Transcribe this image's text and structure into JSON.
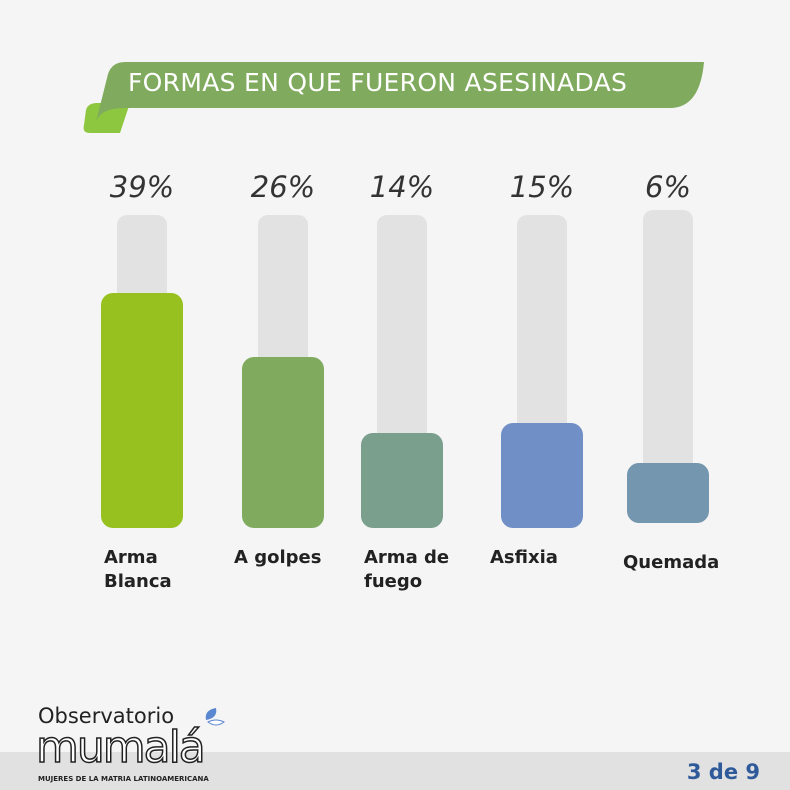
{
  "header": {
    "title": "FORMAS EN QUE FUERON ASESINADAS"
  },
  "chart_data": {
    "type": "bar",
    "title": "FORMAS EN QUE FUERON ASESINADAS",
    "categories": [
      "Arma\nBlanca",
      "A golpes",
      "Arma de\nfuego",
      "Asfixia",
      "Quemada"
    ],
    "values": [
      39,
      26,
      14,
      15,
      6
    ],
    "value_labels": [
      "39%",
      "26%",
      "14%",
      "15%",
      "6%"
    ],
    "colors": [
      "#97c11f",
      "#80ab5f",
      "#7a9f8c",
      "#6f8fc6",
      "#7496ae"
    ],
    "track_color": "#e2e2e2",
    "unit": "%"
  },
  "footer": {
    "brand_prefix": "Observatorio",
    "brand_logo": "mumalá",
    "tagline": "MUJERES DE LA MATRIA LATINOAMERICANA",
    "page_indicator": "3 de 9"
  },
  "colors": {
    "banner": "#80ab5f",
    "banner_tail": "#8dc63f",
    "page_text": "#2f5a9a"
  }
}
